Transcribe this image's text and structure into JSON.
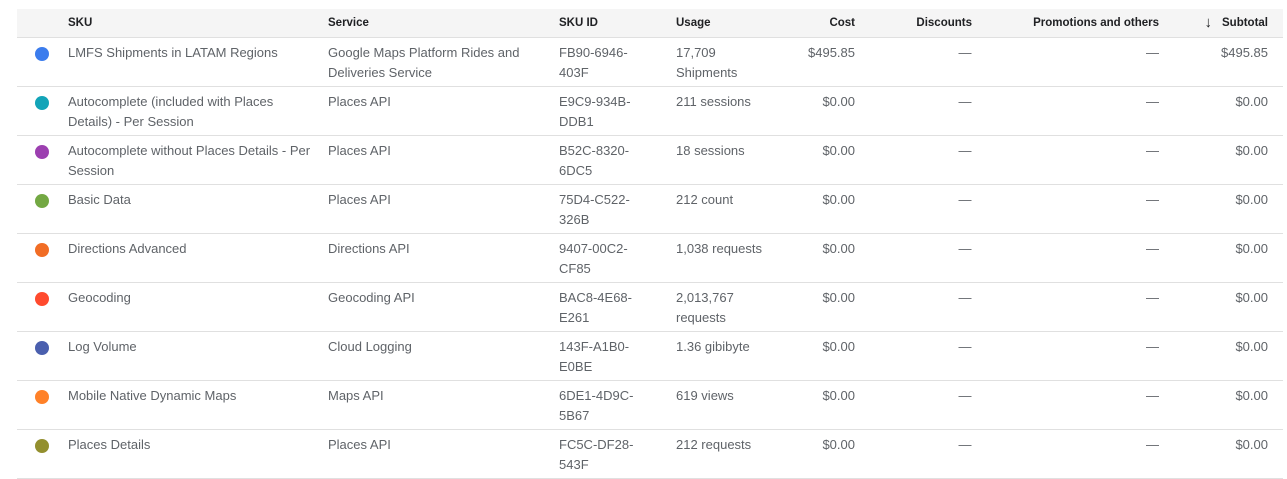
{
  "columns": {
    "sku": "SKU",
    "service": "Service",
    "sku_id": "SKU ID",
    "usage": "Usage",
    "cost": "Cost",
    "discounts": "Discounts",
    "promotions": "Promotions and others",
    "subtotal": "Subtotal"
  },
  "sort": {
    "column": "Subtotal",
    "direction": "descending",
    "icon": "arrow-down-icon"
  },
  "rows": [
    {
      "color": "#3b7ced",
      "sku": "LMFS Shipments in LATAM Regions",
      "service": "Google Maps Platform Rides and Deliveries Service",
      "sku_id": "FB90-6946-403F",
      "usage": "17,709 Shipments",
      "cost": "$495.85",
      "discounts": "—",
      "promotions": "—",
      "subtotal": "$495.85"
    },
    {
      "color": "#12a4b8",
      "sku": "Autocomplete (included with Places Details) - Per Session",
      "service": "Places API",
      "sku_id": "E9C9-934B-DDB1",
      "usage": "211 sessions",
      "cost": "$0.00",
      "discounts": "—",
      "promotions": "—",
      "subtotal": "$0.00"
    },
    {
      "color": "#9c3fb0",
      "sku": "Autocomplete without Places Details - Per Session",
      "service": "Places API",
      "sku_id": "B52C-8320-6DC5",
      "usage": "18 sessions",
      "cost": "$0.00",
      "discounts": "—",
      "promotions": "—",
      "subtotal": "$0.00"
    },
    {
      "color": "#73a843",
      "sku": "Basic Data",
      "service": "Places API",
      "sku_id": "75D4-C522-326B",
      "usage": "212 count",
      "cost": "$0.00",
      "discounts": "—",
      "promotions": "—",
      "subtotal": "$0.00"
    },
    {
      "color": "#f16d25",
      "sku": "Directions Advanced",
      "service": "Directions API",
      "sku_id": "9407-00C2-CF85",
      "usage": "1,038 requests",
      "cost": "$0.00",
      "discounts": "—",
      "promotions": "—",
      "subtotal": "$0.00"
    },
    {
      "color": "#ff4a2e",
      "sku": "Geocoding",
      "service": "Geocoding API",
      "sku_id": "BAC8-4E68-E261",
      "usage": "2,013,767 requests",
      "cost": "$0.00",
      "discounts": "—",
      "promotions": "—",
      "subtotal": "$0.00"
    },
    {
      "color": "#4a5fae",
      "sku": "Log Volume",
      "service": "Cloud Logging",
      "sku_id": "143F-A1B0-E0BE",
      "usage": "1.36 gibibyte",
      "cost": "$0.00",
      "discounts": "—",
      "promotions": "—",
      "subtotal": "$0.00"
    },
    {
      "color": "#ff8128",
      "sku": "Mobile Native Dynamic Maps",
      "service": "Maps API",
      "sku_id": "6DE1-4D9C-5B67",
      "usage": "619 views",
      "cost": "$0.00",
      "discounts": "—",
      "promotions": "—",
      "subtotal": "$0.00"
    },
    {
      "color": "#938f2e",
      "sku": "Places Details",
      "service": "Places API",
      "sku_id": "FC5C-DF28-543F",
      "usage": "212 requests",
      "cost": "$0.00",
      "discounts": "—",
      "promotions": "—",
      "subtotal": "$0.00"
    }
  ]
}
